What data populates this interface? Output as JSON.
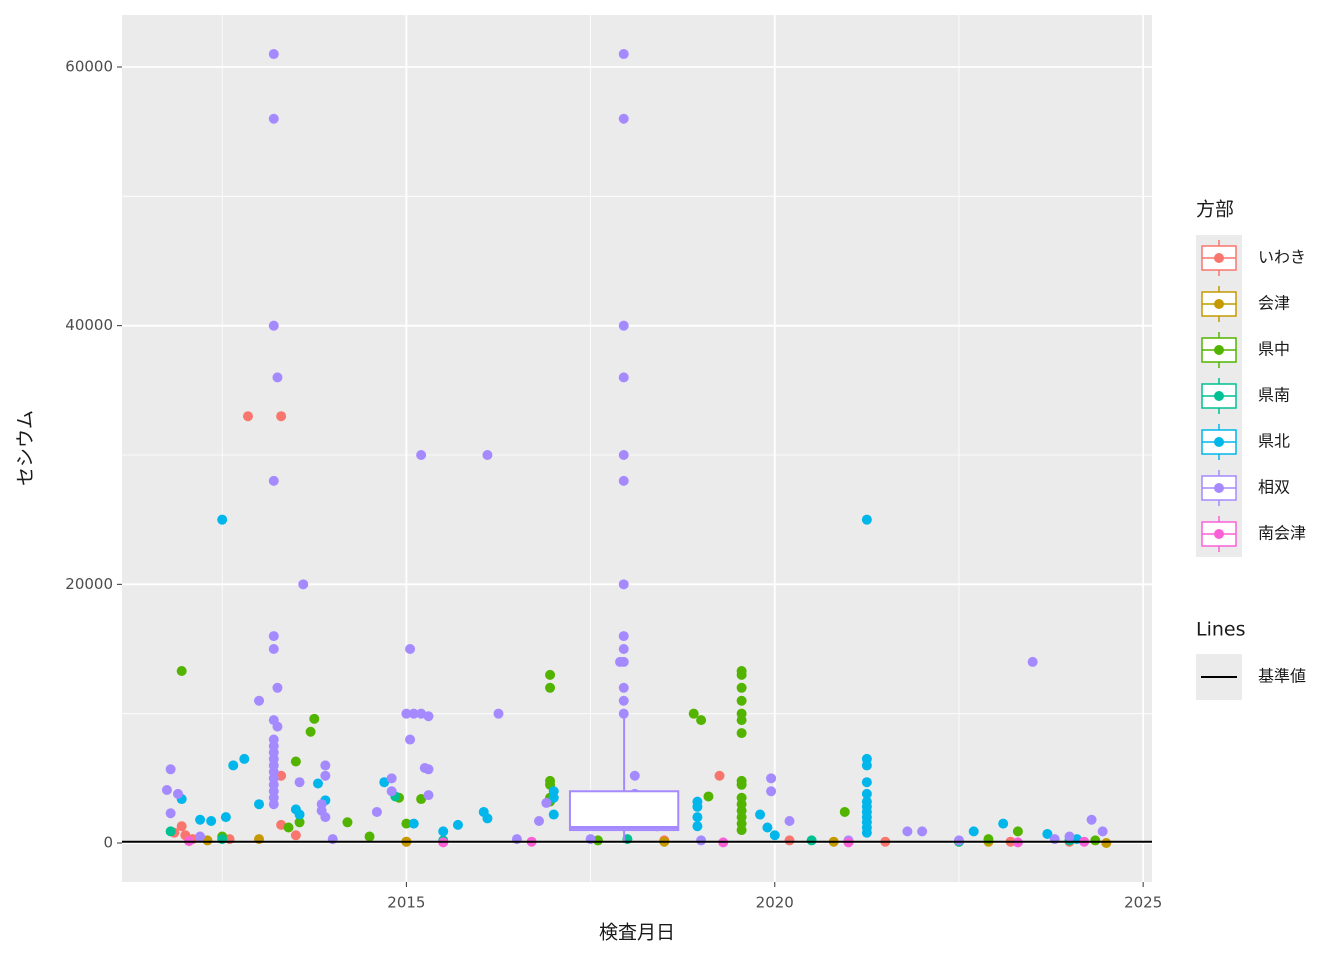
{
  "chart_data": {
    "type": "scatter",
    "x_label": "検査月日",
    "y_label": "セシウム",
    "xlim": [
      2011.14,
      2025.12
    ],
    "ylim": [
      -3015,
      64020
    ],
    "xticks": [
      2015,
      2020,
      2025
    ],
    "yticks": [
      0,
      20000,
      40000,
      60000
    ],
    "x_minor_grid": [
      2012.5,
      2017.5,
      2022.5
    ],
    "y_minor_grid": [
      10000,
      30000,
      50000
    ],
    "grid": true,
    "legend_title": "方部",
    "legend_position": "right",
    "series": [
      {
        "name": "いわき",
        "color": "#F8766D",
        "x": [
          2012.85,
          2013.3,
          2013.3,
          2019.25,
          2013.3,
          2011.95,
          2011.85,
          2012.0,
          2012.1,
          2013.5,
          2015.0,
          2020.2,
          2021.5,
          2022.5,
          2023.2,
          2024.0,
          2012.6,
          2018.5
        ],
        "values": [
          33000,
          33000,
          5200,
          5200,
          1400,
          1300,
          800,
          600,
          300,
          600,
          100,
          200,
          100,
          100,
          100,
          100,
          300,
          200
        ]
      },
      {
        "name": "会津",
        "color": "#C49A00",
        "x": [
          2012.3,
          2015.0,
          2018.5,
          2020.8,
          2022.9,
          2024.5,
          2013.0
        ],
        "values": [
          200,
          100,
          100,
          100,
          100,
          0,
          300
        ]
      },
      {
        "name": "県中",
        "color": "#53B400",
        "x": [
          2011.95,
          2013.75,
          2013.7,
          2013.5,
          2013.55,
          2013.4,
          2014.2,
          2014.9,
          2015.2,
          2015.0,
          2016.95,
          2016.95,
          2016.95,
          2016.95,
          2016.95,
          2016.95,
          2018.15,
          2018.4,
          2018.9,
          2019.0,
          2019.1,
          2019.55,
          2019.55,
          2019.55,
          2019.55,
          2019.55,
          2019.55,
          2019.55,
          2019.55,
          2019.55,
          2019.55,
          2019.55,
          2019.55,
          2019.55,
          2019.55,
          2019.55,
          2020.95,
          2023.3,
          2022.9,
          2012.5,
          2014.5,
          2017.6,
          2024.35
        ],
        "values": [
          13300,
          9600,
          8600,
          6300,
          1600,
          1200,
          1600,
          3500,
          3400,
          1500,
          13000,
          12000,
          4800,
          4500,
          3500,
          3200,
          2100,
          1300,
          10000,
          9500,
          3600,
          13300,
          13000,
          12000,
          11000,
          10000,
          9500,
          8500,
          4800,
          4500,
          3500,
          3000,
          2500,
          2000,
          1500,
          1000,
          2400,
          900,
          300,
          500,
          500,
          200,
          200
        ]
      },
      {
        "name": "県南",
        "color": "#00C094",
        "x": [
          2014.85,
          2012.5,
          2015.5,
          2018.0,
          2020.5,
          2022.5,
          2024.0,
          2011.8
        ],
        "values": [
          3600,
          300,
          200,
          300,
          200,
          100,
          200,
          900
        ]
      },
      {
        "name": "県北",
        "color": "#00B6EB",
        "x": [
          2012.5,
          2021.25,
          2012.8,
          2012.65,
          2011.95,
          2012.2,
          2012.35,
          2012.55,
          2013.0,
          2013.5,
          2013.55,
          2013.8,
          2013.9,
          2014.7,
          2015.1,
          2015.5,
          2015.7,
          2016.05,
          2016.1,
          2017.0,
          2017.0,
          2017.0,
          2018.5,
          2018.95,
          2018.95,
          2018.95,
          2018.95,
          2019.8,
          2019.9,
          2020.0,
          2021.25,
          2021.25,
          2021.25,
          2021.25,
          2021.25,
          2021.25,
          2021.25,
          2021.25,
          2021.25,
          2021.25,
          2021.25,
          2022.7,
          2023.1,
          2023.7,
          2024.1
        ],
        "values": [
          25000,
          25000,
          6500,
          6000,
          3400,
          1800,
          1700,
          2000,
          3000,
          2600,
          2200,
          4600,
          3300,
          4700,
          1500,
          900,
          1400,
          2400,
          1900,
          2200,
          3500,
          4000,
          1700,
          3200,
          2800,
          2000,
          1300,
          2200,
          1200,
          600,
          6500,
          6000,
          4700,
          3800,
          3200,
          2800,
          2400,
          2000,
          1600,
          1200,
          800,
          900,
          1500,
          700,
          300
        ]
      },
      {
        "name": "相双",
        "color": "#A58AFF",
        "x": [
          2011.8,
          2011.9,
          2011.75,
          2011.8,
          2013.2,
          2013.2,
          2013.2,
          2013.25,
          2013.2,
          2013.6,
          2013.2,
          2013.2,
          2013.25,
          2013.0,
          2013.2,
          2013.25,
          2013.2,
          2013.2,
          2013.2,
          2013.2,
          2013.2,
          2013.2,
          2013.2,
          2013.2,
          2013.2,
          2013.2,
          2013.2,
          2013.55,
          2013.9,
          2013.9,
          2013.85,
          2013.85,
          2013.9,
          2014.6,
          2014.8,
          2014.8,
          2015.2,
          2015.05,
          2015.0,
          2015.1,
          2015.2,
          2015.3,
          2015.05,
          2015.25,
          2015.3,
          2015.3,
          2016.1,
          2016.25,
          2016.9,
          2016.8,
          2017.95,
          2017.95,
          2017.95,
          2017.95,
          2017.95,
          2017.95,
          2017.95,
          2017.95,
          2017.95,
          2017.9,
          2017.95,
          2017.95,
          2017.95,
          2017.95,
          2018.1,
          2018.1,
          2018.1,
          2019.95,
          2019.95,
          2020.2,
          2023.5,
          2024.3,
          2024.45,
          2022.0,
          2021.8,
          2012.2,
          2014.0,
          2016.5,
          2017.5,
          2019.0,
          2021.0,
          2022.5,
          2023.8,
          2024.0
        ],
        "values": [
          5700,
          3800,
          4100,
          2300,
          61000,
          56000,
          40000,
          36000,
          28000,
          20000,
          16000,
          15000,
          12000,
          11000,
          9500,
          9000,
          8000,
          7500,
          7000,
          6500,
          6000,
          5500,
          5000,
          4500,
          4000,
          3500,
          3000,
          4700,
          6000,
          5200,
          3000,
          2500,
          2000,
          2400,
          5000,
          4000,
          30000,
          15000,
          10000,
          10000,
          10000,
          9800,
          8000,
          5800,
          5700,
          3700,
          30000,
          10000,
          3100,
          1700,
          61000,
          56000,
          40000,
          36000,
          30000,
          28000,
          20000,
          16000,
          15000,
          14000,
          14000,
          12000,
          11000,
          10000,
          5200,
          3800,
          1500,
          5000,
          4000,
          1700,
          14000,
          1800,
          900,
          900,
          900,
          500,
          300,
          300,
          300,
          200,
          200,
          200,
          300,
          500
        ]
      },
      {
        "name": "南会津",
        "color": "#FB61D7",
        "x": [
          2012.05,
          2015.5,
          2016.7,
          2019.3,
          2021.0,
          2023.3,
          2024.2
        ],
        "values": [
          150,
          50,
          100,
          50,
          50,
          50,
          100
        ]
      }
    ],
    "boxes": [
      {
        "series": 5,
        "x": [
          2017.22,
          2018.69
        ],
        "q1": 1000,
        "median": 1200,
        "q3": 4000,
        "whisker_low": 0,
        "whisker_high": 10000
      }
    ],
    "hline": {
      "legend_title": "Lines",
      "name": "基準値",
      "value": 100,
      "color": "#000000"
    }
  }
}
